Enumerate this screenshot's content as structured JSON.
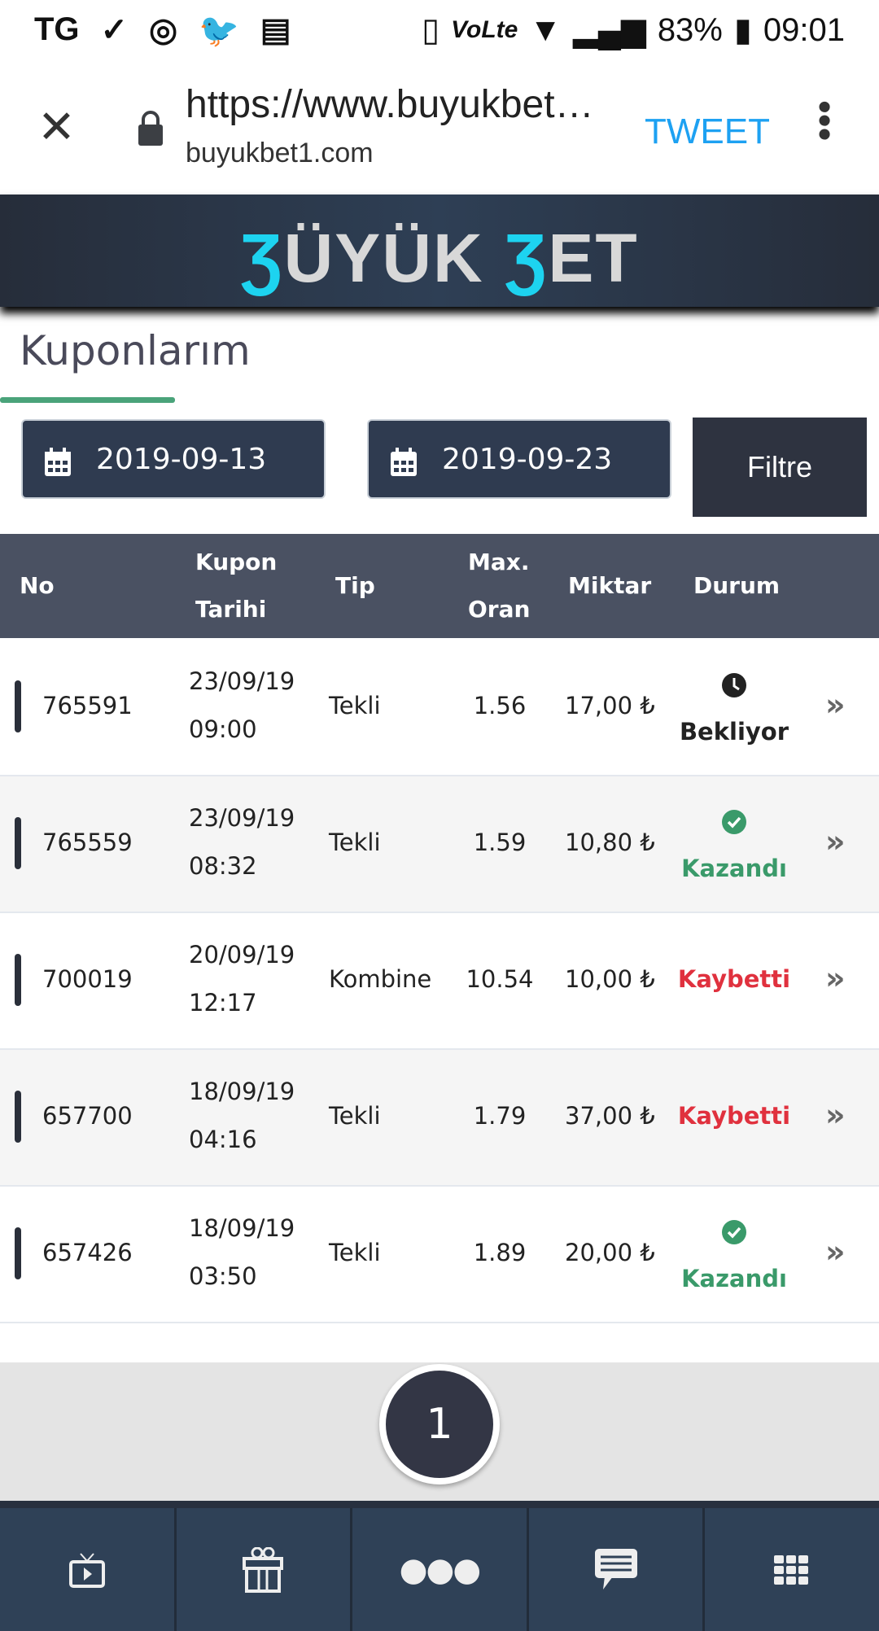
{
  "status_bar": {
    "battery": "83%",
    "time": "09:01",
    "network": "VoLte"
  },
  "browser": {
    "url": "https://www.buyukbet…",
    "domain": "buyukbet1.com",
    "tweet": "TWEET"
  },
  "brand": {
    "logo_text": "BÜYÜKBET",
    "accent": "#1dd3f0"
  },
  "page": {
    "title": "Kuponlarım"
  },
  "filter": {
    "start_date": "2019-09-13",
    "end_date": "2019-09-23",
    "button": "Filtre"
  },
  "table": {
    "headers": {
      "no": "No",
      "date1": "Kupon",
      "date2": "Tarihi",
      "tip": "Tip",
      "odds1": "Max.",
      "odds2": "Oran",
      "amount": "Miktar",
      "status": "Durum"
    },
    "rows": [
      {
        "no": "765591",
        "date": "23/09/19",
        "time": "09:00",
        "tip": "Tekli",
        "odds": "1.56",
        "amount": "17,00 ₺",
        "status": "Bekliyor",
        "state": "pending"
      },
      {
        "no": "765559",
        "date": "23/09/19",
        "time": "08:32",
        "tip": "Tekli",
        "odds": "1.59",
        "amount": "10,80 ₺",
        "status": "Kazandı",
        "state": "won"
      },
      {
        "no": "700019",
        "date": "20/09/19",
        "time": "12:17",
        "tip": "Kombine",
        "odds": "10.54",
        "amount": "10,00 ₺",
        "status": "Kaybetti",
        "state": "lost"
      },
      {
        "no": "657700",
        "date": "18/09/19",
        "time": "04:16",
        "tip": "Tekli",
        "odds": "1.79",
        "amount": "37,00 ₺",
        "status": "Kaybetti",
        "state": "lost"
      },
      {
        "no": "657426",
        "date": "18/09/19",
        "time": "03:50",
        "tip": "Tekli",
        "odds": "1.89",
        "amount": "20,00 ₺",
        "status": "Kazandı",
        "state": "won"
      }
    ]
  },
  "pagination": {
    "current": "1"
  },
  "bottom_nav": [
    "tv-icon",
    "gift-icon",
    "more-icon",
    "chat-icon",
    "grid-icon"
  ]
}
